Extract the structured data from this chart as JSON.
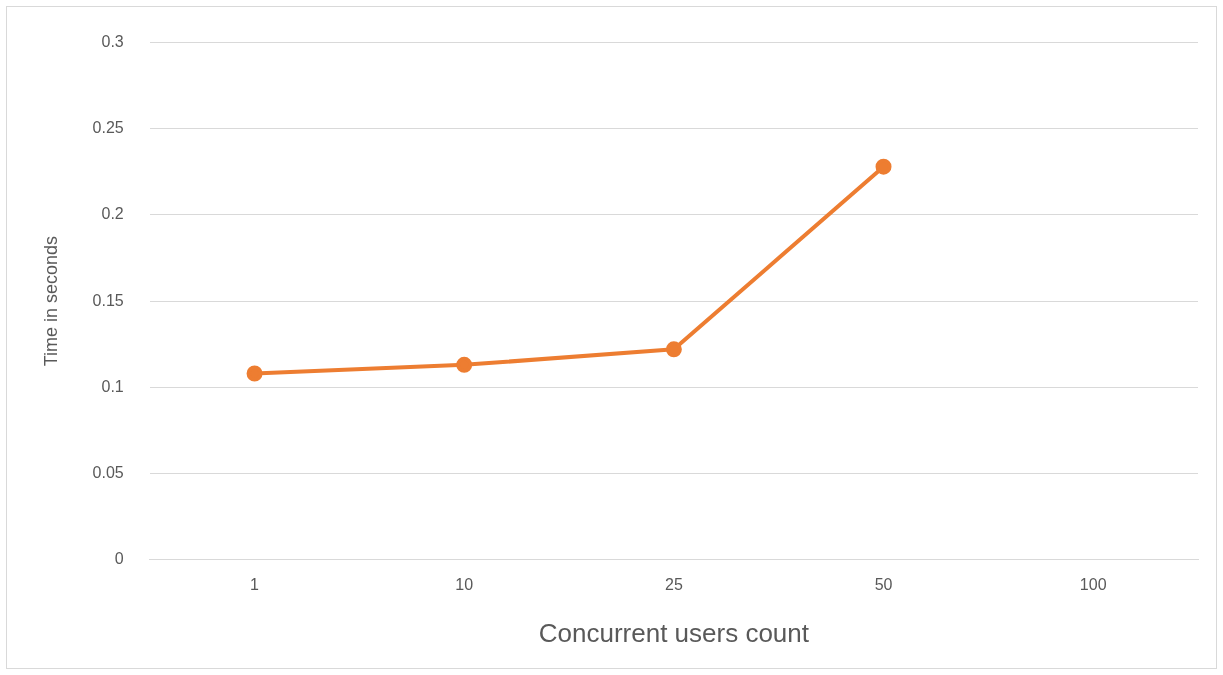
{
  "chart_data": {
    "type": "line",
    "xlabel": "Concurrent users count",
    "ylabel": "Time in seconds",
    "categories": [
      "1",
      "10",
      "25",
      "50",
      "100"
    ],
    "series": [
      {
        "color": "#ed7d31",
        "values": [
          0.108,
          0.113,
          0.122,
          0.228,
          null
        ]
      }
    ],
    "ylim": [
      0,
      0.3
    ],
    "yticks": [
      0,
      0.05,
      0.1,
      0.15,
      0.2,
      0.25,
      0.3
    ],
    "grid": "y",
    "legend": false,
    "marker": "circle",
    "line_style": "solid"
  }
}
